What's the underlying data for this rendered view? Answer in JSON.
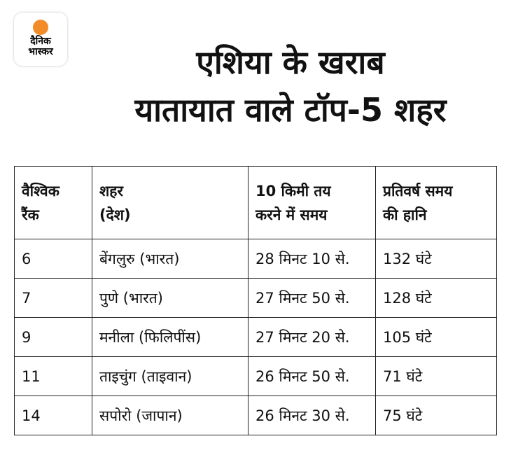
{
  "logo": {
    "line1": "दैनिक",
    "line2": "भास्कर",
    "accent": "#f28c28"
  },
  "title": {
    "line1": "एशिया के खराब",
    "line2": "यातायात वाले टॉप-5 शहर"
  },
  "table": {
    "headers": [
      [
        "वैश्विक",
        "रैंक"
      ],
      [
        "शहर",
        "(देश)"
      ],
      [
        "10 किमी तय",
        "करने में समय"
      ],
      [
        "प्रतिवर्ष समय",
        "की हानि"
      ]
    ],
    "rows": [
      [
        "6",
        "बेंगलुरु (भारत)",
        "28 मिनट 10 से.",
        "132 घंटे"
      ],
      [
        "7",
        "पुणे (भारत)",
        "27 मिनट 50 से.",
        "128 घंटे"
      ],
      [
        "9",
        "मनीला (फिलिपींस)",
        "27 मिनट 20 से.",
        "105 घंटे"
      ],
      [
        "11",
        "ताइचुंग (ताइवान)",
        "26 मिनट 50 से.",
        "71 घंटे"
      ],
      [
        "14",
        "सपोरो (जापान)",
        "26 मिनट 30 से.",
        "75 घंटे"
      ]
    ]
  }
}
